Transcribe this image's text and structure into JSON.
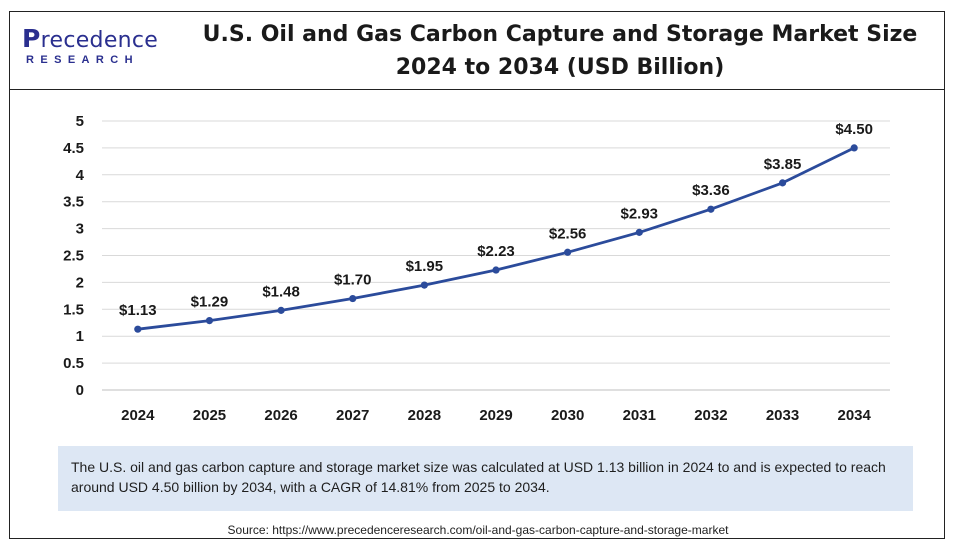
{
  "header": {
    "logo_top": "Precedence",
    "logo_bottom": "RESEARCH",
    "title_line1": "U.S. Oil and Gas Carbon Capture and Storage Market Size",
    "title_line2": "2024 to 2034 (USD Billion)"
  },
  "colors": {
    "line": "#2b4b9b",
    "grid": "#d9d9d9",
    "note_bg": "#dde7f4",
    "brand": "#2a2f8f"
  },
  "chart_data": {
    "type": "line",
    "title": "U.S. Oil and Gas Carbon Capture and Storage Market Size 2024 to 2034 (USD Billion)",
    "categories": [
      "2024",
      "2025",
      "2026",
      "2027",
      "2028",
      "2029",
      "2030",
      "2031",
      "2032",
      "2033",
      "2034"
    ],
    "values": [
      1.13,
      1.29,
      1.48,
      1.7,
      1.95,
      2.23,
      2.56,
      2.93,
      3.36,
      3.85,
      4.5
    ],
    "data_labels": [
      "$1.13",
      "$1.29",
      "$1.48",
      "$1.70",
      "$1.95",
      "$2.23",
      "$2.56",
      "$2.93",
      "$3.36",
      "$3.85",
      "$4.50"
    ],
    "y_ticks": [
      "0",
      "0.5",
      "1",
      "1.5",
      "2",
      "2.5",
      "3",
      "3.5",
      "4",
      "4.5",
      "5"
    ],
    "ylim": [
      0,
      5
    ],
    "grid": true,
    "legend": "none"
  },
  "note": "The U.S. oil and gas carbon capture and storage market size was calculated at USD 1.13 billion in 2024 to and is expected to reach around USD 4.50 billion by 2034, with a CAGR of 14.81% from 2025 to 2034.",
  "source": "Source: https://www.precedenceresearch.com/oil-and-gas-carbon-capture-and-storage-market"
}
